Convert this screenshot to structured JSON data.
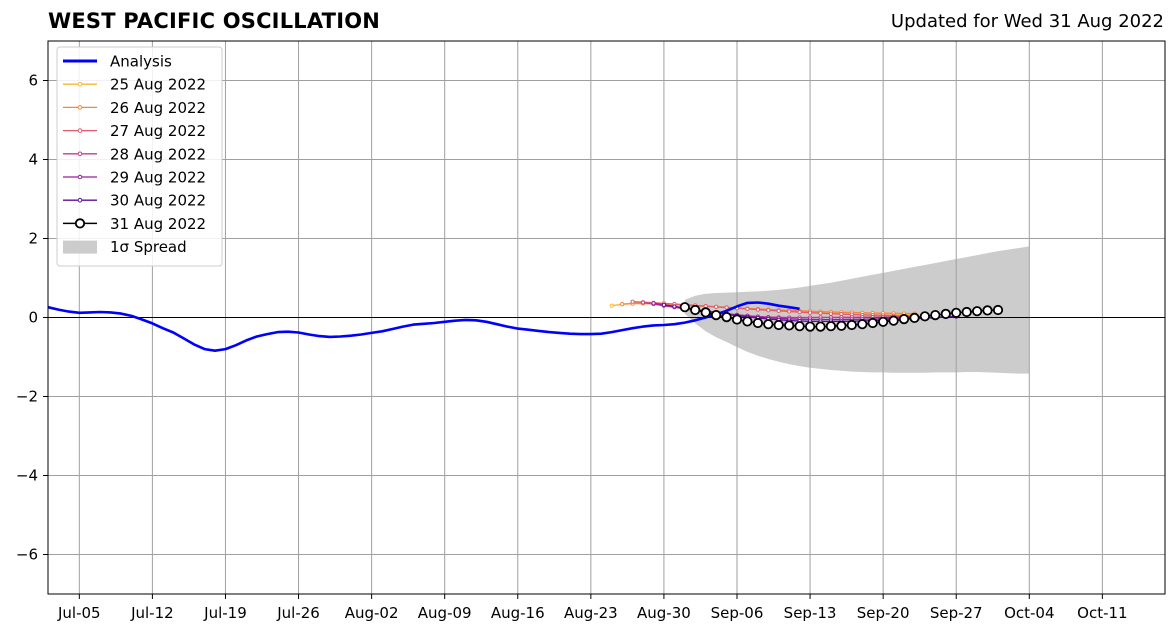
{
  "title": "WEST PACIFIC OSCILLATION",
  "subtitle": "Updated for Wed 31 Aug 2022",
  "chart_data": {
    "type": "line",
    "ylim": [
      -7,
      7
    ],
    "yticks": [
      6,
      4,
      2,
      0,
      -2,
      -4,
      -6
    ],
    "ytick_labels": [
      "6",
      "4",
      "2",
      "0",
      "−2",
      "−4",
      "−6"
    ],
    "xlim": [
      "2022-07-02",
      "2022-10-17"
    ],
    "xticks": [
      "2022-07-05",
      "2022-07-12",
      "2022-07-19",
      "2022-07-26",
      "2022-08-02",
      "2022-08-09",
      "2022-08-16",
      "2022-08-23",
      "2022-08-30",
      "2022-09-06",
      "2022-09-13",
      "2022-09-20",
      "2022-09-27",
      "2022-10-04",
      "2022-10-11"
    ],
    "xtick_labels": [
      "Jul-05",
      "Jul-12",
      "Jul-19",
      "Jul-26",
      "Aug-02",
      "Aug-09",
      "Aug-16",
      "Aug-23",
      "Aug-30",
      "Sep-06",
      "Sep-13",
      "Sep-20",
      "Sep-27",
      "Oct-04",
      "Oct-11"
    ],
    "grid": true,
    "legend_position": "top-left",
    "legend": [
      "Analysis",
      "25 Aug 2022",
      "26 Aug 2022",
      "27 Aug 2022",
      "28 Aug 2022",
      "29 Aug 2022",
      "30 Aug 2022",
      "31 Aug 2022",
      "1σ Spread"
    ],
    "analysis": {
      "name": "Analysis",
      "color": "#0000ff",
      "start": "2022-07-02",
      "values": [
        0.26,
        0.2,
        0.15,
        0.12,
        0.13,
        0.14,
        0.13,
        0.1,
        0.04,
        -0.05,
        -0.15,
        -0.27,
        -0.38,
        -0.53,
        -0.68,
        -0.8,
        -0.84,
        -0.8,
        -0.7,
        -0.58,
        -0.48,
        -0.42,
        -0.37,
        -0.36,
        -0.38,
        -0.43,
        -0.47,
        -0.49,
        -0.48,
        -0.46,
        -0.43,
        -0.39,
        -0.35,
        -0.29,
        -0.23,
        -0.18,
        -0.16,
        -0.14,
        -0.11,
        -0.08,
        -0.06,
        -0.07,
        -0.11,
        -0.17,
        -0.23,
        -0.28,
        -0.31,
        -0.34,
        -0.37,
        -0.39,
        -0.41,
        -0.42,
        -0.42,
        -0.41,
        -0.37,
        -0.32,
        -0.27,
        -0.23,
        -0.2,
        -0.19,
        -0.17,
        -0.13,
        -0.07,
        0.0,
        0.08,
        0.17,
        0.28,
        0.37,
        0.38,
        0.35,
        0.3,
        0.26,
        0.22
      ]
    },
    "forecasts": [
      {
        "name": "25 Aug 2022",
        "color": "#fdb632",
        "start": "2022-08-25",
        "end": "2022-09-23",
        "v0": 0.3,
        "peak": 0.4,
        "vend": 0.08,
        "shape": "decline"
      },
      {
        "name": "26 Aug 2022",
        "color": "#f7863f",
        "start": "2022-08-26",
        "end": "2022-09-23",
        "v0": 0.34,
        "peak": 0.38,
        "vend": 0.1,
        "shape": "decline"
      },
      {
        "name": "27 Aug 2022",
        "color": "#e1596b",
        "start": "2022-08-27",
        "end": "2022-09-23",
        "v0": 0.4,
        "peak": 0.4,
        "vend": 0.04,
        "shape": "decline"
      },
      {
        "name": "28 Aug 2022",
        "color": "#c23d89",
        "start": "2022-08-28",
        "end": "2022-09-23",
        "v0": 0.38,
        "low": 0.0,
        "vend": 0.02,
        "shape": "dip"
      },
      {
        "name": "29 Aug 2022",
        "color": "#9a1e9b",
        "start": "2022-08-29",
        "end": "2022-09-27",
        "v0": 0.36,
        "low": -0.05,
        "vend": 0.02,
        "shape": "dip"
      },
      {
        "name": "30 Aug 2022",
        "color": "#5c0da0",
        "start": "2022-08-30",
        "end": "2022-09-27",
        "v0": 0.32,
        "low": -0.1,
        "vend": 0.03,
        "shape": "dip"
      }
    ],
    "current": {
      "name": "31 Aug 2022",
      "color": "#000000",
      "start": "2022-09-01",
      "values": [
        0.26,
        0.19,
        0.13,
        0.06,
        0.01,
        -0.05,
        -0.1,
        -0.14,
        -0.17,
        -0.19,
        -0.2,
        -0.22,
        -0.23,
        -0.23,
        -0.22,
        -0.21,
        -0.19,
        -0.17,
        -0.14,
        -0.11,
        -0.08,
        -0.04,
        -0.01,
        0.03,
        0.06,
        0.09,
        0.12,
        0.14,
        0.16,
        0.18,
        0.19
      ]
    },
    "spread": {
      "name": "1σ Spread",
      "color": "#cccccc",
      "start": "2022-09-01",
      "upper": [
        0.45,
        0.55,
        0.6,
        0.62,
        0.63,
        0.64,
        0.65,
        0.66,
        0.68,
        0.7,
        0.73,
        0.76,
        0.8,
        0.84,
        0.88,
        0.93,
        0.98,
        1.03,
        1.08,
        1.13,
        1.18,
        1.23,
        1.28,
        1.33,
        1.38,
        1.43,
        1.48,
        1.53,
        1.58,
        1.63,
        1.68,
        1.72,
        1.76,
        1.8
      ],
      "lower": [
        0.1,
        -0.15,
        -0.35,
        -0.5,
        -0.62,
        -0.75,
        -0.87,
        -0.97,
        -1.05,
        -1.12,
        -1.18,
        -1.23,
        -1.27,
        -1.3,
        -1.33,
        -1.35,
        -1.37,
        -1.38,
        -1.39,
        -1.39,
        -1.4,
        -1.4,
        -1.4,
        -1.4,
        -1.39,
        -1.39,
        -1.39,
        -1.38,
        -1.38,
        -1.39,
        -1.4,
        -1.41,
        -1.42,
        -1.42
      ]
    }
  }
}
